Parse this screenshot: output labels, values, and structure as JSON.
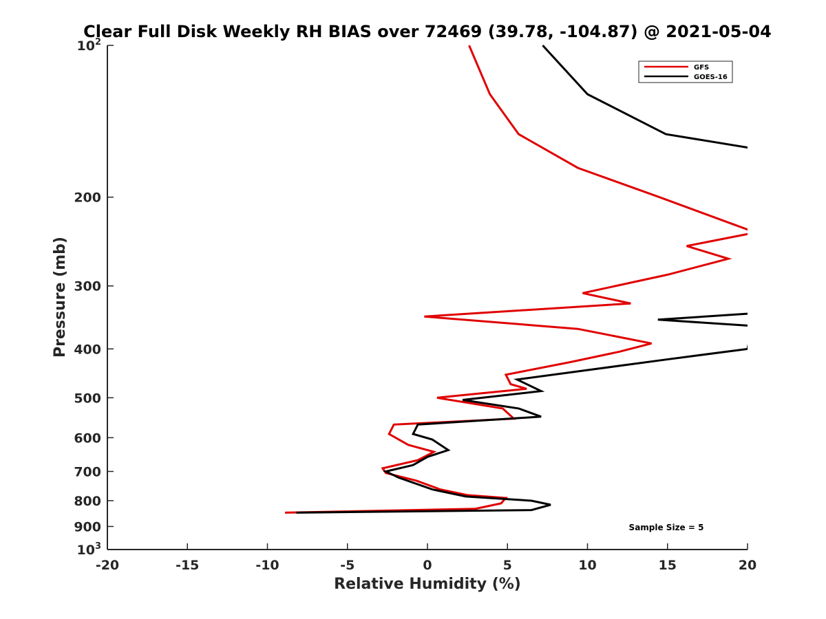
{
  "chart_data": {
    "type": "line",
    "title": "Clear Full Disk Weekly RH BIAS over 72469 (39.78, -104.87) @ 2021-05-04",
    "xlabel": "Relative Humidity (%)",
    "ylabel": "Pressure (mb)",
    "xlim": [
      -20,
      20
    ],
    "ylim": [
      100,
      1000
    ],
    "y_scale": "log",
    "y_reversed": true,
    "grid": false,
    "legend_position": "top-right",
    "x_ticks": [
      "-20",
      "-15",
      "-10",
      "-5",
      "0",
      "5",
      "10",
      "15",
      "20"
    ],
    "y_ticks": [
      {
        "value": 100,
        "base": "10",
        "exp": "2"
      },
      {
        "value": 200,
        "label": "200"
      },
      {
        "value": 300,
        "label": "300"
      },
      {
        "value": 400,
        "label": "400"
      },
      {
        "value": 500,
        "label": "500"
      },
      {
        "value": 600,
        "label": "600"
      },
      {
        "value": 700,
        "label": "700"
      },
      {
        "value": 800,
        "label": "800"
      },
      {
        "value": 900,
        "label": "900"
      },
      {
        "value": 1000,
        "base": "10",
        "exp": "3"
      }
    ],
    "annotation": "Sample Size = 5",
    "series": [
      {
        "name": "GFS",
        "color": "#e00000",
        "points": [
          {
            "x": 2.6,
            "p": 100
          },
          {
            "x": 3.9,
            "p": 125
          },
          {
            "x": 5.7,
            "p": 150
          },
          {
            "x": 9.4,
            "p": 175
          },
          {
            "x": 14.5,
            "p": 200
          },
          {
            "x": 20.5,
            "p": 235
          },
          {
            "x": 16.2,
            "p": 250
          },
          {
            "x": 18.8,
            "p": 265
          },
          {
            "x": 15.0,
            "p": 285
          },
          {
            "x": 9.7,
            "p": 310
          },
          {
            "x": 12.7,
            "p": 325
          },
          {
            "x": -0.2,
            "p": 345
          },
          {
            "x": 9.4,
            "p": 365
          },
          {
            "x": 14.0,
            "p": 390
          },
          {
            "x": 12.0,
            "p": 405
          },
          {
            "x": 8.9,
            "p": 425
          },
          {
            "x": 4.9,
            "p": 450
          },
          {
            "x": 5.2,
            "p": 470
          },
          {
            "x": 6.2,
            "p": 480
          },
          {
            "x": 0.6,
            "p": 500
          },
          {
            "x": 4.7,
            "p": 525
          },
          {
            "x": 5.4,
            "p": 550
          },
          {
            "x": -2.1,
            "p": 565
          },
          {
            "x": -2.4,
            "p": 590
          },
          {
            "x": -1.2,
            "p": 620
          },
          {
            "x": 0.4,
            "p": 640
          },
          {
            "x": -0.6,
            "p": 665
          },
          {
            "x": -2.8,
            "p": 690
          },
          {
            "x": -2.6,
            "p": 705
          },
          {
            "x": -0.7,
            "p": 730
          },
          {
            "x": 0.8,
            "p": 760
          },
          {
            "x": 2.5,
            "p": 780
          },
          {
            "x": 4.9,
            "p": 790
          },
          {
            "x": 4.6,
            "p": 810
          },
          {
            "x": 3.0,
            "p": 830
          },
          {
            "x": -8.9,
            "p": 845
          }
        ]
      },
      {
        "name": "GOES-16",
        "color": "#000000",
        "points": [
          {
            "x": 7.2,
            "p": 100
          },
          {
            "x": 10.0,
            "p": 125
          },
          {
            "x": 14.9,
            "p": 150
          },
          {
            "x": 20.3,
            "p": 160
          },
          {
            "x": 20.3,
            "p": 340
          },
          {
            "x": 14.4,
            "p": 350
          },
          {
            "x": 20.3,
            "p": 360
          },
          {
            "x": 20.0,
            "p": 400
          },
          {
            "x": 14.9,
            "p": 420
          },
          {
            "x": 5.6,
            "p": 460
          },
          {
            "x": 7.1,
            "p": 485
          },
          {
            "x": 2.2,
            "p": 505
          },
          {
            "x": 5.7,
            "p": 525
          },
          {
            "x": 7.1,
            "p": 545
          },
          {
            "x": -0.6,
            "p": 565
          },
          {
            "x": -0.9,
            "p": 590
          },
          {
            "x": 0.3,
            "p": 605
          },
          {
            "x": 1.3,
            "p": 635
          },
          {
            "x": 0.0,
            "p": 655
          },
          {
            "x": -0.9,
            "p": 680
          },
          {
            "x": -2.6,
            "p": 700
          },
          {
            "x": -1.8,
            "p": 720
          },
          {
            "x": 0.3,
            "p": 760
          },
          {
            "x": 2.4,
            "p": 785
          },
          {
            "x": 6.5,
            "p": 800
          },
          {
            "x": 7.7,
            "p": 815
          },
          {
            "x": 6.5,
            "p": 835
          },
          {
            "x": -8.2,
            "p": 845
          }
        ]
      }
    ]
  }
}
